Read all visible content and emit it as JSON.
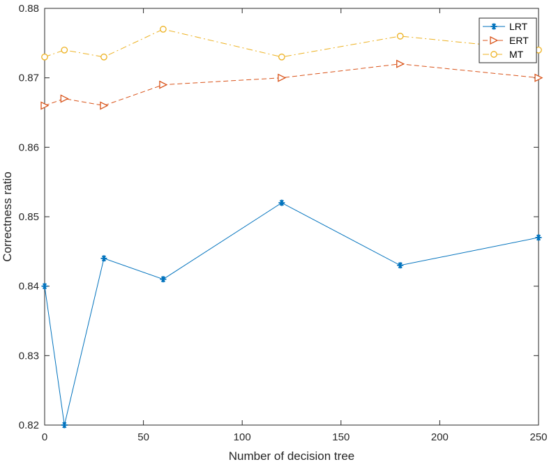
{
  "chart_data": {
    "type": "line",
    "xlabel": "Number of decision tree",
    "ylabel": "Correctness ratio",
    "xlim": [
      0,
      250
    ],
    "ylim": [
      0.82,
      0.88
    ],
    "xticks": [
      0,
      50,
      100,
      150,
      200,
      250
    ],
    "yticks": [
      0.82,
      0.83,
      0.84,
      0.85,
      0.86,
      0.87,
      0.88
    ],
    "x": [
      0,
      10,
      30,
      60,
      120,
      180,
      250
    ],
    "grid": false,
    "legend_position": "top-right",
    "series": [
      {
        "name": "LRT",
        "values": [
          0.84,
          0.82,
          0.844,
          0.841,
          0.852,
          0.843,
          0.847
        ],
        "color": "#0072BD",
        "marker": "asterisk",
        "line_style": "solid"
      },
      {
        "name": "ERT",
        "values": [
          0.866,
          0.867,
          0.866,
          0.869,
          0.87,
          0.872,
          0.87
        ],
        "color": "#D95319",
        "marker": "triangle-right",
        "line_style": "dashed"
      },
      {
        "name": "MT",
        "values": [
          0.873,
          0.874,
          0.873,
          0.877,
          0.873,
          0.876,
          0.874
        ],
        "color": "#EDB120",
        "marker": "circle",
        "line_style": "dash-dot"
      }
    ]
  }
}
